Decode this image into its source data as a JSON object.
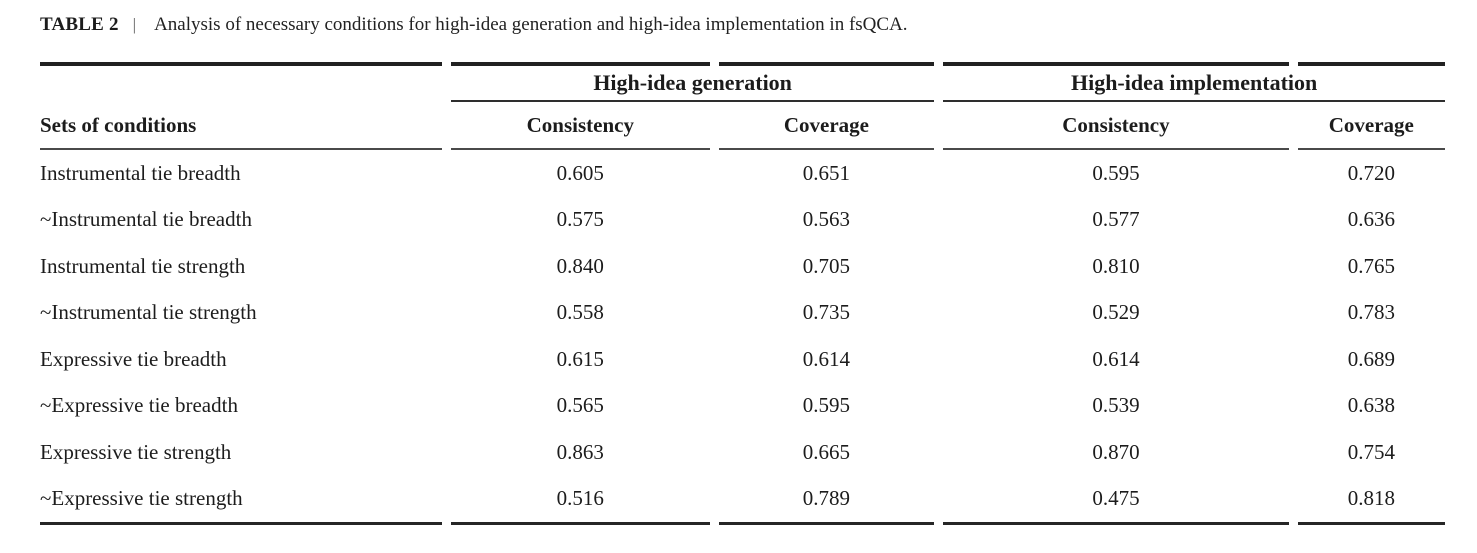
{
  "title": {
    "label": "TABLE 2",
    "separator": "|",
    "caption": "Analysis of necessary conditions for high-idea generation and high-idea implementation in fsQCA."
  },
  "table": {
    "row_header": "Sets of conditions",
    "groups": [
      {
        "label": "High-idea generation",
        "columns": [
          "Consistency",
          "Coverage"
        ]
      },
      {
        "label": "High-idea implementation",
        "columns": [
          "Consistency",
          "Coverage"
        ]
      }
    ],
    "rows": [
      {
        "condition": "Instrumental tie breadth",
        "values": [
          "0.605",
          "0.651",
          "0.595",
          "0.720"
        ]
      },
      {
        "condition": "~Instrumental tie breadth",
        "values": [
          "0.575",
          "0.563",
          "0.577",
          "0.636"
        ]
      },
      {
        "condition": "Instrumental tie strength",
        "values": [
          "0.840",
          "0.705",
          "0.810",
          "0.765"
        ]
      },
      {
        "condition": "~Instrumental tie strength",
        "values": [
          "0.558",
          "0.735",
          "0.529",
          "0.783"
        ]
      },
      {
        "condition": "Expressive tie breadth",
        "values": [
          "0.615",
          "0.614",
          "0.614",
          "0.689"
        ]
      },
      {
        "condition": "~Expressive tie breadth",
        "values": [
          "0.565",
          "0.595",
          "0.539",
          "0.638"
        ]
      },
      {
        "condition": "Expressive tie strength",
        "values": [
          "0.863",
          "0.665",
          "0.870",
          "0.754"
        ]
      },
      {
        "condition": "~Expressive tie strength",
        "values": [
          "0.516",
          "0.789",
          "0.475",
          "0.818"
        ]
      }
    ]
  },
  "colors": {
    "text": "#1c1c1c",
    "rule_heavy": "#212121",
    "rule_mid": "#4a4a4a",
    "rule_bottom": "#262626"
  }
}
